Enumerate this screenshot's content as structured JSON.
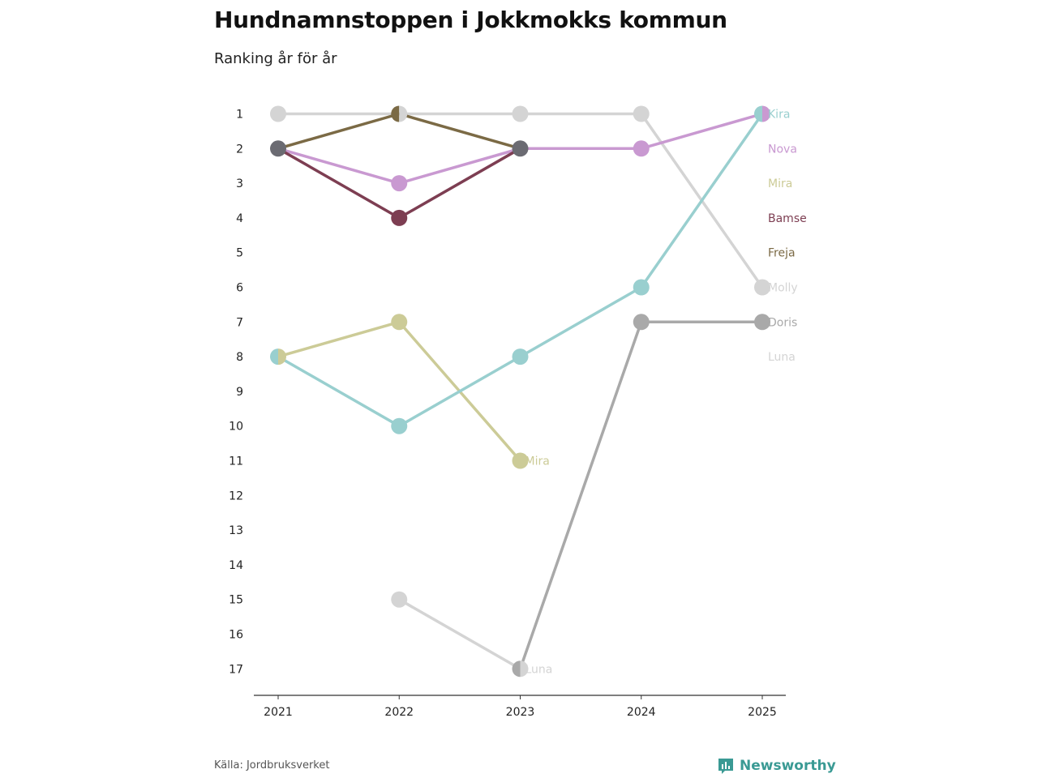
{
  "title": "Hundnamnstoppen i Jokkmokks kommun",
  "subtitle": "Ranking år för år",
  "source": "Källa: Jordbruksverket",
  "brand": {
    "name": "Newsworthy",
    "icon": "newsworthy-logo-icon",
    "color": "#3a9a94"
  },
  "chart_data": {
    "type": "line",
    "categories": [
      "2021",
      "2022",
      "2023",
      "2024",
      "2025"
    ],
    "y_ticks": [
      "1",
      "2",
      "3",
      "4",
      "5",
      "6",
      "7",
      "8",
      "9",
      "10",
      "11",
      "12",
      "13",
      "14",
      "15",
      "16",
      "17"
    ],
    "ylim": [
      1,
      17
    ],
    "y_reversed": true,
    "grid": false,
    "series": [
      {
        "name": "Molly",
        "color": "#d4d4d4",
        "values": [
          1,
          1,
          1,
          1,
          6
        ]
      },
      {
        "name": "Freja",
        "color": "#7b6a45",
        "values": [
          2,
          1,
          2,
          null,
          null
        ]
      },
      {
        "name": "Nova",
        "color": "#c999d1",
        "values": [
          2,
          3,
          2,
          2,
          1
        ]
      },
      {
        "name": "Bamse",
        "color": "#7d3e52",
        "values": [
          2,
          4,
          2,
          null,
          null
        ]
      },
      {
        "name": "Mira",
        "color": "#cccb97",
        "values": [
          8,
          7,
          11,
          null,
          null
        ]
      },
      {
        "name": "Kira",
        "color": "#99cfcf",
        "values": [
          8,
          10,
          8,
          6,
          1
        ]
      },
      {
        "name": "Luna",
        "color": "#d4d4d4",
        "values": [
          null,
          15,
          17,
          null,
          null
        ]
      },
      {
        "name": "Doris",
        "color": "#a9a9a9",
        "values": [
          null,
          null,
          17,
          7,
          7
        ]
      }
    ],
    "multi_marker_color": "#6b6b72",
    "end_labels": [
      {
        "name": "Kira",
        "rank": 1,
        "color": "#99cfcf"
      },
      {
        "name": "Nova",
        "rank": 2,
        "color": "#c999d1"
      },
      {
        "name": "Mira",
        "rank": 3,
        "color": "#cccb97"
      },
      {
        "name": "Bamse",
        "rank": 4,
        "color": "#7d3e52"
      },
      {
        "name": "Freja",
        "rank": 5,
        "color": "#7b6a45"
      },
      {
        "name": "Molly",
        "rank": 6,
        "color": "#d4d4d4"
      },
      {
        "name": "Doris",
        "rank": 7,
        "color": "#a9a9a9"
      },
      {
        "name": "Luna",
        "rank": 8,
        "color": "#d4d4d4"
      }
    ],
    "inline_labels": [
      {
        "name": "Mira",
        "category": "2023",
        "rank": 11,
        "color": "#cccb97"
      },
      {
        "name": "Luna",
        "category": "2023",
        "rank": 17,
        "color": "#d4d4d4"
      }
    ]
  }
}
